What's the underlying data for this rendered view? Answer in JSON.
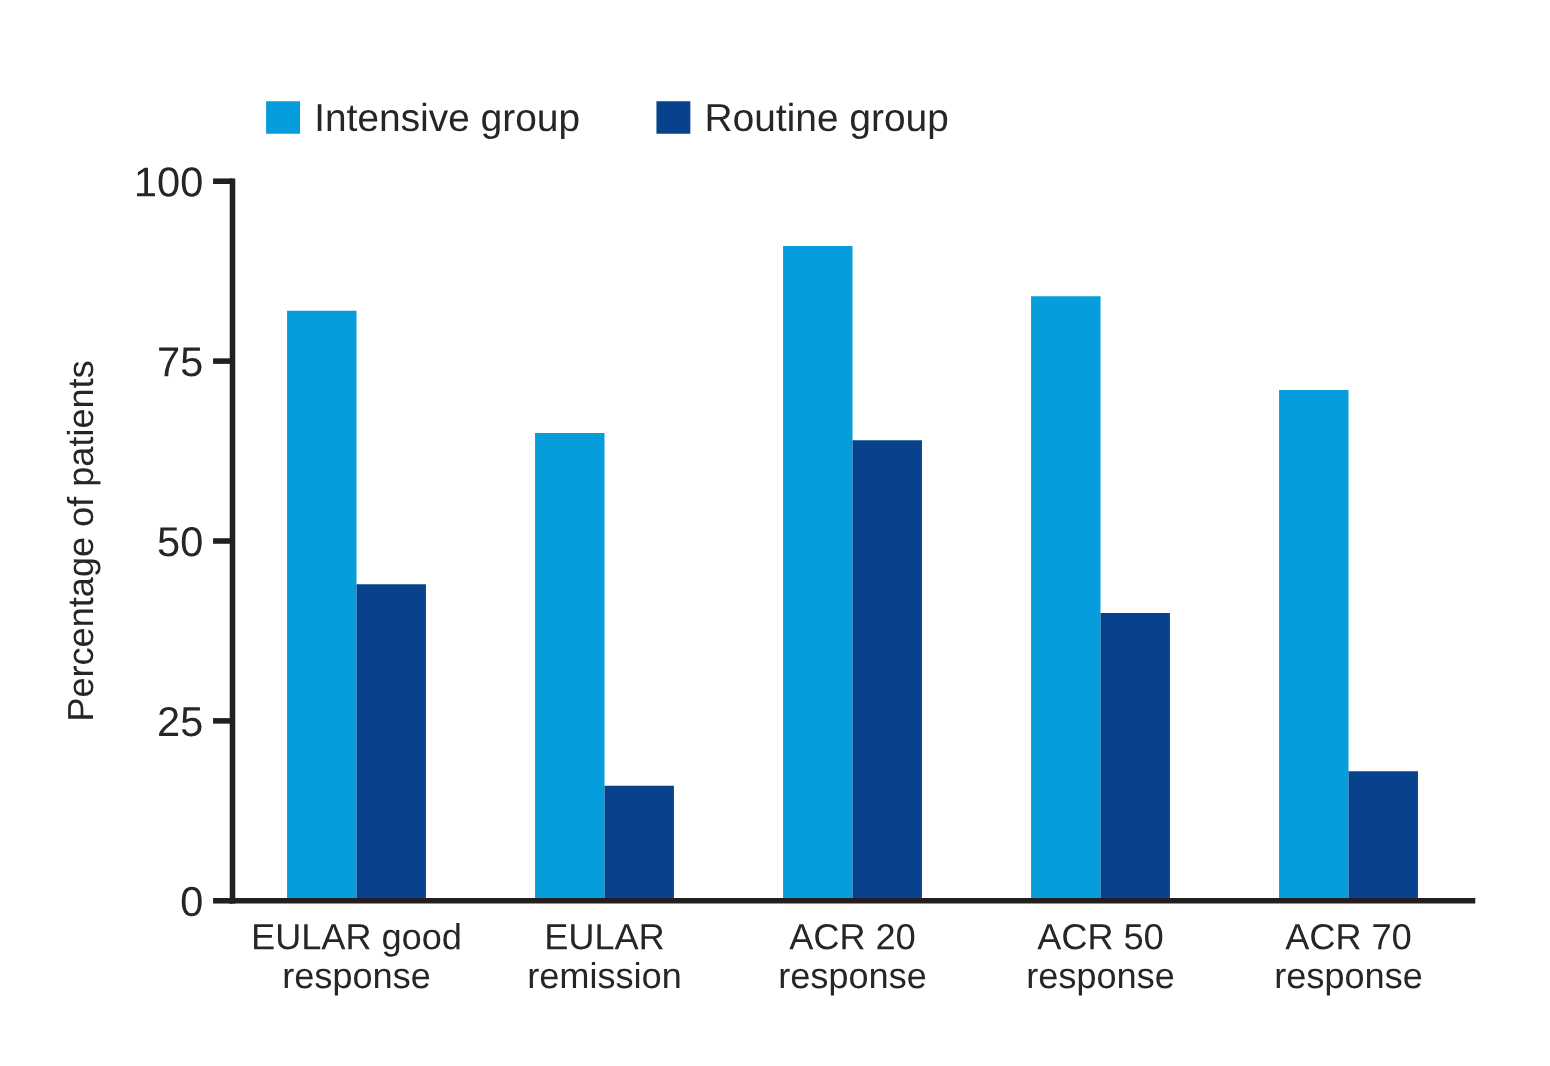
{
  "chart_data": {
    "type": "bar",
    "ylabel": "Percentage of patients",
    "categories": [
      "EULAR good\nresponse",
      "EULAR\nremission",
      "ACR 20\nresponse",
      "ACR 50\nresponse",
      "ACR 70\nresponse"
    ],
    "series": [
      {
        "name": "Intensive group",
        "color": "#059ddc",
        "values": [
          82,
          65,
          91,
          84,
          71
        ]
      },
      {
        "name": "Routine group",
        "color": "#09428c",
        "values": [
          44,
          16,
          64,
          40,
          18
        ]
      }
    ],
    "ylim": [
      0,
      100
    ],
    "yticks": [
      0,
      25,
      50,
      75,
      100
    ],
    "grid": false,
    "legend": "top left"
  }
}
